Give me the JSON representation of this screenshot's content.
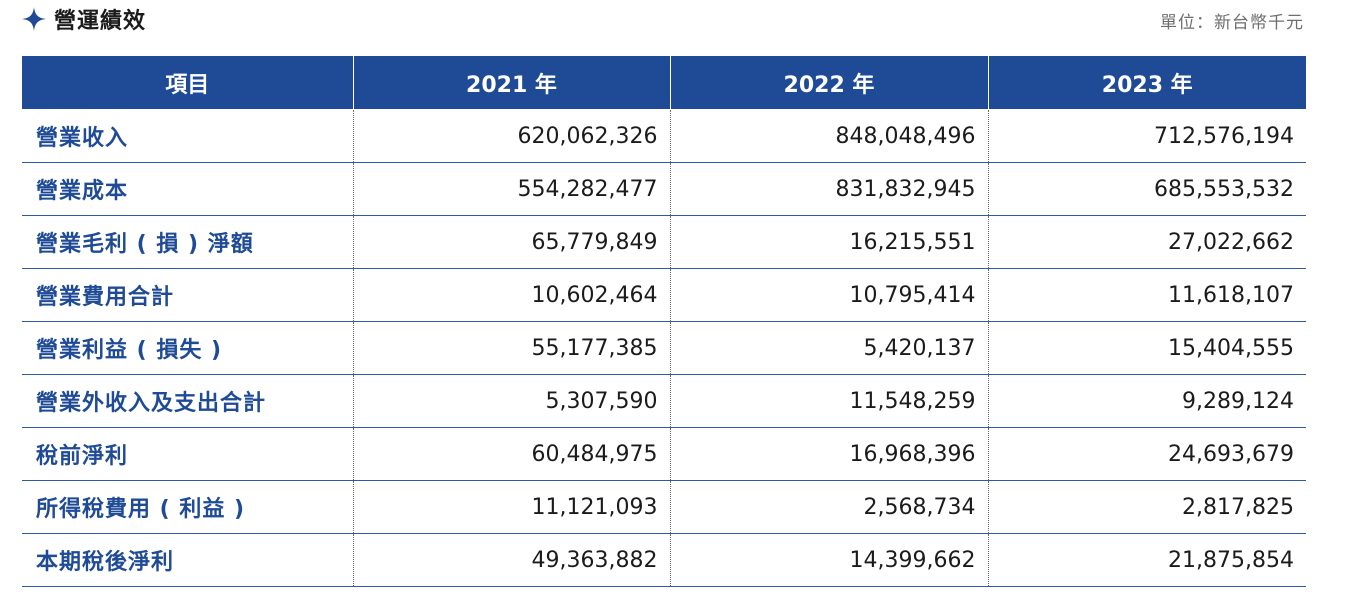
{
  "section": {
    "title": "營運績效",
    "unit": "單位：新台幣千元",
    "icon": "four-point-star-icon",
    "accent_color": "#1f4b96"
  },
  "table": {
    "headers": [
      "項目",
      "2021 年",
      "2022 年",
      "2023 年"
    ],
    "rows": [
      [
        "營業收入",
        "620,062,326",
        "848,048,496",
        "712,576,194"
      ],
      [
        "營業成本",
        "554,282,477",
        "831,832,945",
        "685,553,532"
      ],
      [
        "營業毛利 ( 損 ) 淨額",
        "65,779,849",
        "16,215,551",
        "27,022,662"
      ],
      [
        "營業費用合計",
        "10,602,464",
        "10,795,414",
        "11,618,107"
      ],
      [
        "營業利益 ( 損失 )",
        "55,177,385",
        "5,420,137",
        "15,404,555"
      ],
      [
        "營業外收入及支出合計",
        "5,307,590",
        "11,548,259",
        "9,289,124"
      ],
      [
        "稅前淨利",
        "60,484,975",
        "16,968,396",
        "24,693,679"
      ],
      [
        "所得稅費用 ( 利益 )",
        "11,121,093",
        "2,568,734",
        "2,817,825"
      ],
      [
        "本期稅後淨利",
        "49,363,882",
        "14,399,662",
        "21,875,854"
      ]
    ]
  }
}
